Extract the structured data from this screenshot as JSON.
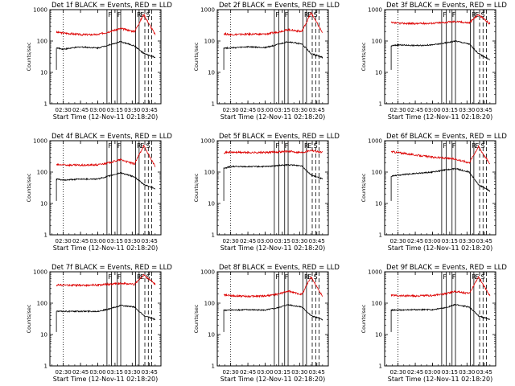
{
  "chart_data": {
    "type": "line",
    "layout": "3x3 grid of panels",
    "yscale": "log",
    "ylim": [
      1,
      1000
    ],
    "yticks": [
      "1",
      "10",
      "100",
      "1000"
    ],
    "ylabel": "Counts/sec",
    "xlabel": "Start Time (12-Nov-11 02:18:20)",
    "xlim": [
      "02:18:20",
      "03:55:00"
    ],
    "xticks": [
      "02:30",
      "02:45",
      "03:00",
      "03:15",
      "03:30",
      "03:45"
    ],
    "series_colors": {
      "events": "#000000",
      "lld": "#dd0000"
    },
    "flag_labels": [
      "F",
      "F",
      "R",
      "E",
      "S"
    ],
    "panels": [
      {
        "title": "Det 1f BLACK = Events, RED = LLD",
        "points": [
          {
            "t": "02:24",
            "events": 60,
            "lld": 190
          },
          {
            "t": "02:30",
            "events": 55,
            "lld": 180
          },
          {
            "t": "02:45",
            "events": 65,
            "lld": 160
          },
          {
            "t": "03:00",
            "events": 60,
            "lld": 160
          },
          {
            "t": "03:10",
            "events": 75,
            "lld": 200
          },
          {
            "t": "03:20",
            "events": 95,
            "lld": 250
          },
          {
            "t": "03:32",
            "events": 70,
            "lld": 200
          },
          {
            "t": "03:40",
            "events": 40,
            "lld": 700
          },
          {
            "t": "03:50",
            "events": 30,
            "lld": 160
          }
        ]
      },
      {
        "title": "Det 2f BLACK = Events, RED = LLD",
        "points": [
          {
            "t": "02:24",
            "events": 60,
            "lld": 170
          },
          {
            "t": "02:30",
            "events": 60,
            "lld": 160
          },
          {
            "t": "02:45",
            "events": 65,
            "lld": 165
          },
          {
            "t": "03:00",
            "events": 62,
            "lld": 165
          },
          {
            "t": "03:10",
            "events": 75,
            "lld": 190
          },
          {
            "t": "03:20",
            "events": 95,
            "lld": 230
          },
          {
            "t": "03:32",
            "events": 80,
            "lld": 200
          },
          {
            "t": "03:40",
            "events": 40,
            "lld": 800
          },
          {
            "t": "03:50",
            "events": 30,
            "lld": 180
          }
        ]
      },
      {
        "title": "Det 3f BLACK = Events, RED = LLD",
        "points": [
          {
            "t": "02:24",
            "events": 70,
            "lld": 380
          },
          {
            "t": "02:30",
            "events": 75,
            "lld": 370
          },
          {
            "t": "02:45",
            "events": 72,
            "lld": 360
          },
          {
            "t": "03:00",
            "events": 75,
            "lld": 370
          },
          {
            "t": "03:10",
            "events": 85,
            "lld": 390
          },
          {
            "t": "03:20",
            "events": 100,
            "lld": 420
          },
          {
            "t": "03:32",
            "events": 80,
            "lld": 380
          },
          {
            "t": "03:40",
            "events": 40,
            "lld": 700
          },
          {
            "t": "03:50",
            "events": 25,
            "lld": 350
          }
        ]
      },
      {
        "title": "Det 4f BLACK = Events, RED = LLD",
        "points": [
          {
            "t": "02:24",
            "events": 60,
            "lld": 170
          },
          {
            "t": "02:30",
            "events": 55,
            "lld": 170
          },
          {
            "t": "02:45",
            "events": 60,
            "lld": 165
          },
          {
            "t": "03:00",
            "events": 60,
            "lld": 170
          },
          {
            "t": "03:10",
            "events": 75,
            "lld": 200
          },
          {
            "t": "03:20",
            "events": 95,
            "lld": 250
          },
          {
            "t": "03:32",
            "events": 70,
            "lld": 180
          },
          {
            "t": "03:40",
            "events": 40,
            "lld": 700
          },
          {
            "t": "03:50",
            "events": 30,
            "lld": 150
          }
        ]
      },
      {
        "title": "Det 5f BLACK = Events, RED = LLD",
        "points": [
          {
            "t": "02:24",
            "events": 130,
            "lld": 420
          },
          {
            "t": "02:30",
            "events": 150,
            "lld": 430
          },
          {
            "t": "02:45",
            "events": 150,
            "lld": 420
          },
          {
            "t": "03:00",
            "events": 150,
            "lld": 420
          },
          {
            "t": "03:10",
            "events": 160,
            "lld": 440
          },
          {
            "t": "03:20",
            "events": 170,
            "lld": 460
          },
          {
            "t": "03:32",
            "events": 160,
            "lld": 420
          },
          {
            "t": "03:40",
            "events": 80,
            "lld": 500
          },
          {
            "t": "03:50",
            "events": 60,
            "lld": 420
          }
        ]
      },
      {
        "title": "Det 6f BLACK = Events, RED = LLD",
        "points": [
          {
            "t": "02:24",
            "events": 75,
            "lld": 450
          },
          {
            "t": "02:30",
            "events": 80,
            "lld": 420
          },
          {
            "t": "02:45",
            "events": 90,
            "lld": 350
          },
          {
            "t": "03:00",
            "events": 100,
            "lld": 300
          },
          {
            "t": "03:10",
            "events": 115,
            "lld": 280
          },
          {
            "t": "03:20",
            "events": 130,
            "lld": 260
          },
          {
            "t": "03:32",
            "events": 100,
            "lld": 200
          },
          {
            "t": "03:40",
            "events": 40,
            "lld": 650
          },
          {
            "t": "03:50",
            "events": 25,
            "lld": 180
          }
        ]
      },
      {
        "title": "Det 7f BLACK = Events, RED = LLD",
        "points": [
          {
            "t": "02:24",
            "events": 55,
            "lld": 380
          },
          {
            "t": "02:30",
            "events": 55,
            "lld": 380
          },
          {
            "t": "02:45",
            "events": 55,
            "lld": 370
          },
          {
            "t": "03:00",
            "events": 55,
            "lld": 380
          },
          {
            "t": "03:10",
            "events": 65,
            "lld": 400
          },
          {
            "t": "03:20",
            "events": 85,
            "lld": 430
          },
          {
            "t": "03:32",
            "events": 75,
            "lld": 400
          },
          {
            "t": "03:40",
            "events": 40,
            "lld": 800
          },
          {
            "t": "03:50",
            "events": 30,
            "lld": 400
          }
        ]
      },
      {
        "title": "Det 8f BLACK = Events, RED = LLD",
        "points": [
          {
            "t": "02:24",
            "events": 60,
            "lld": 180
          },
          {
            "t": "02:30",
            "events": 60,
            "lld": 175
          },
          {
            "t": "02:45",
            "events": 62,
            "lld": 165
          },
          {
            "t": "03:00",
            "events": 60,
            "lld": 170
          },
          {
            "t": "03:10",
            "events": 70,
            "lld": 190
          },
          {
            "t": "03:20",
            "events": 90,
            "lld": 240
          },
          {
            "t": "03:32",
            "events": 75,
            "lld": 190
          },
          {
            "t": "03:40",
            "events": 40,
            "lld": 700
          },
          {
            "t": "03:50",
            "events": 30,
            "lld": 160
          }
        ]
      },
      {
        "title": "Det 9f BLACK = Events, RED = LLD",
        "points": [
          {
            "t": "02:24",
            "events": 60,
            "lld": 180
          },
          {
            "t": "02:30",
            "events": 60,
            "lld": 175
          },
          {
            "t": "02:45",
            "events": 62,
            "lld": 170
          },
          {
            "t": "03:00",
            "events": 62,
            "lld": 175
          },
          {
            "t": "03:10",
            "events": 70,
            "lld": 195
          },
          {
            "t": "03:20",
            "events": 90,
            "lld": 240
          },
          {
            "t": "03:32",
            "events": 75,
            "lld": 200
          },
          {
            "t": "03:40",
            "events": 40,
            "lld": 700
          },
          {
            "t": "03:50",
            "events": 30,
            "lld": 170
          }
        ]
      }
    ]
  }
}
